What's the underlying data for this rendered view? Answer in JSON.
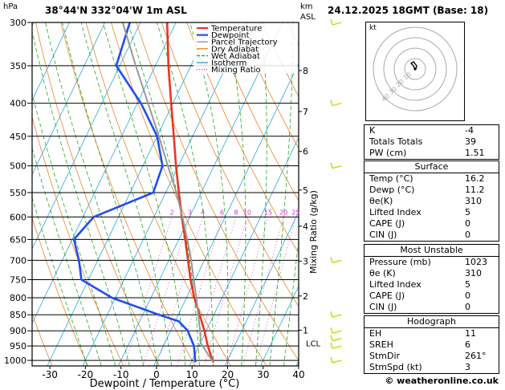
{
  "header": {
    "location": "38°44'N  332°04'W  1m  ASL",
    "datetime": "24.12.2025  18GMT  (Base: 18)",
    "y_unit": "hPa",
    "km_unit": "km",
    "asl_unit": "ASL"
  },
  "chart_data": {
    "type": "line",
    "title": "Skew-T log-P diagram",
    "xlabel": "Dewpoint / Temperature (°C)",
    "ylabel": "hPa",
    "xlim": [
      -35,
      40
    ],
    "pressure_range": [
      1000,
      300
    ],
    "skew_deg_per_log10": 87,
    "x_ticks": [
      -30,
      -20,
      -10,
      0,
      10,
      20,
      30,
      40
    ],
    "pressure_ticks": [
      300,
      350,
      400,
      450,
      500,
      550,
      600,
      650,
      700,
      750,
      800,
      850,
      900,
      950,
      1000
    ],
    "km_ticks": [
      {
        "km": "1",
        "p": 898
      },
      {
        "km": "2",
        "p": 795
      },
      {
        "km": "3",
        "p": 702
      },
      {
        "km": "4",
        "p": 620
      },
      {
        "km": "5",
        "p": 545
      },
      {
        "km": "6",
        "p": 475
      },
      {
        "km": "7",
        "p": 412
      },
      {
        "km": "8",
        "p": 356
      }
    ],
    "lcl_label": "LCL",
    "lcl_p": 940,
    "mixing_ratio_label": "Mixing Ratio (g/kg)",
    "mixing_ratio_values": [
      "2",
      "3",
      "4",
      "6",
      "8",
      "10",
      "15",
      "20",
      "25"
    ],
    "legend": [
      {
        "name": "Temperature",
        "color": "#e8361e"
      },
      {
        "name": "Dewpoint",
        "color": "#1f4ef0"
      },
      {
        "name": "Parcel Trajectory",
        "color": "#999999"
      },
      {
        "name": "Dry Adiabat",
        "color": "#e8862a"
      },
      {
        "name": "Wet Adiabat",
        "color": "#22aa22"
      },
      {
        "name": "Isotherm",
        "color": "#29a8e0"
      },
      {
        "name": "Mixing Ratio",
        "color": "#d033d0"
      }
    ],
    "series": [
      {
        "name": "Temperature",
        "points": [
          {
            "p": 1007,
            "t": 16.2
          },
          {
            "p": 950,
            "t": 12.5
          },
          {
            "p": 900,
            "t": 9.5
          },
          {
            "p": 850,
            "t": 6.0
          },
          {
            "p": 800,
            "t": 2.2
          },
          {
            "p": 750,
            "t": -1.3
          },
          {
            "p": 700,
            "t": -4.6
          },
          {
            "p": 650,
            "t": -8.2
          },
          {
            "p": 600,
            "t": -12.2
          },
          {
            "p": 550,
            "t": -16.3
          },
          {
            "p": 500,
            "t": -20.7
          },
          {
            "p": 450,
            "t": -25.3
          },
          {
            "p": 400,
            "t": -30.5
          },
          {
            "p": 350,
            "t": -36.3
          },
          {
            "p": 300,
            "t": -42.5
          }
        ]
      },
      {
        "name": "Dewpoint",
        "points": [
          {
            "p": 1007,
            "t": 11.2
          },
          {
            "p": 950,
            "t": 8.6
          },
          {
            "p": 900,
            "t": 4.8
          },
          {
            "p": 870,
            "t": 1.0
          },
          {
            "p": 850,
            "t": -5.5
          },
          {
            "p": 800,
            "t": -21.0
          },
          {
            "p": 750,
            "t": -32.0
          },
          {
            "p": 700,
            "t": -35.3
          },
          {
            "p": 650,
            "t": -39.5
          },
          {
            "p": 600,
            "t": -37.0
          },
          {
            "p": 550,
            "t": -23.5
          },
          {
            "p": 500,
            "t": -24.5
          },
          {
            "p": 450,
            "t": -30.0
          },
          {
            "p": 400,
            "t": -39.0
          },
          {
            "p": 350,
            "t": -51.0
          },
          {
            "p": 300,
            "t": -53.0
          }
        ]
      },
      {
        "name": "Parcel Trajectory",
        "points": [
          {
            "p": 1007,
            "t": 16.2
          },
          {
            "p": 940,
            "t": 10.1
          },
          {
            "p": 900,
            "t": 8.3
          },
          {
            "p": 850,
            "t": 5.6
          },
          {
            "p": 800,
            "t": 2.8
          },
          {
            "p": 750,
            "t": -0.4
          },
          {
            "p": 700,
            "t": -3.7
          },
          {
            "p": 650,
            "t": -7.6
          },
          {
            "p": 600,
            "t": -12.0
          },
          {
            "p": 550,
            "t": -17.0
          },
          {
            "p": 500,
            "t": -23.0
          },
          {
            "p": 450,
            "t": -29.5
          },
          {
            "p": 400,
            "t": -37.0
          },
          {
            "p": 350,
            "t": -45.5
          },
          {
            "p": 300,
            "t": -55.0
          }
        ]
      }
    ],
    "wind_barbs_color": "#c8d800",
    "wind_barbs_levels": [
      300,
      400,
      500,
      700,
      850,
      900,
      925,
      950,
      1000
    ]
  },
  "hodograph": {
    "unit_label": "kt",
    "ring_labels": [
      "10",
      "20",
      "30",
      "40"
    ]
  },
  "indices": {
    "rows": [
      {
        "label": "K",
        "value": "-4"
      },
      {
        "label": "Totals Totals",
        "value": "39"
      },
      {
        "label": "PW (cm)",
        "value": "1.51"
      }
    ]
  },
  "surface": {
    "title": "Surface",
    "rows": [
      {
        "label": "Temp (°C)",
        "value": "16.2"
      },
      {
        "label": "Dewp (°C)",
        "value": "11.2"
      },
      {
        "label": "θe(K)",
        "value": "310"
      },
      {
        "label": "Lifted Index",
        "value": "5"
      },
      {
        "label": "CAPE  (J)",
        "value": "0"
      },
      {
        "label": "CIN  (J)",
        "value": "0"
      }
    ]
  },
  "most_unstable": {
    "title": "Most Unstable",
    "rows": [
      {
        "label": "Pressure (mb)",
        "value": "1023"
      },
      {
        "label": "θe (K)",
        "value": "310"
      },
      {
        "label": "Lifted Index",
        "value": "5"
      },
      {
        "label": "CAPE  (J)",
        "value": "0"
      },
      {
        "label": "CIN  (J)",
        "value": "0"
      }
    ]
  },
  "hodograph_table": {
    "title": "Hodograph",
    "rows": [
      {
        "label": "EH",
        "value": "11"
      },
      {
        "label": "SREH",
        "value": "6"
      },
      {
        "label": "StmDir",
        "value": "261°"
      },
      {
        "label": "StmSpd (kt)",
        "value": "3"
      }
    ]
  },
  "footer": {
    "copyright": "© weatheronline.co.uk"
  }
}
